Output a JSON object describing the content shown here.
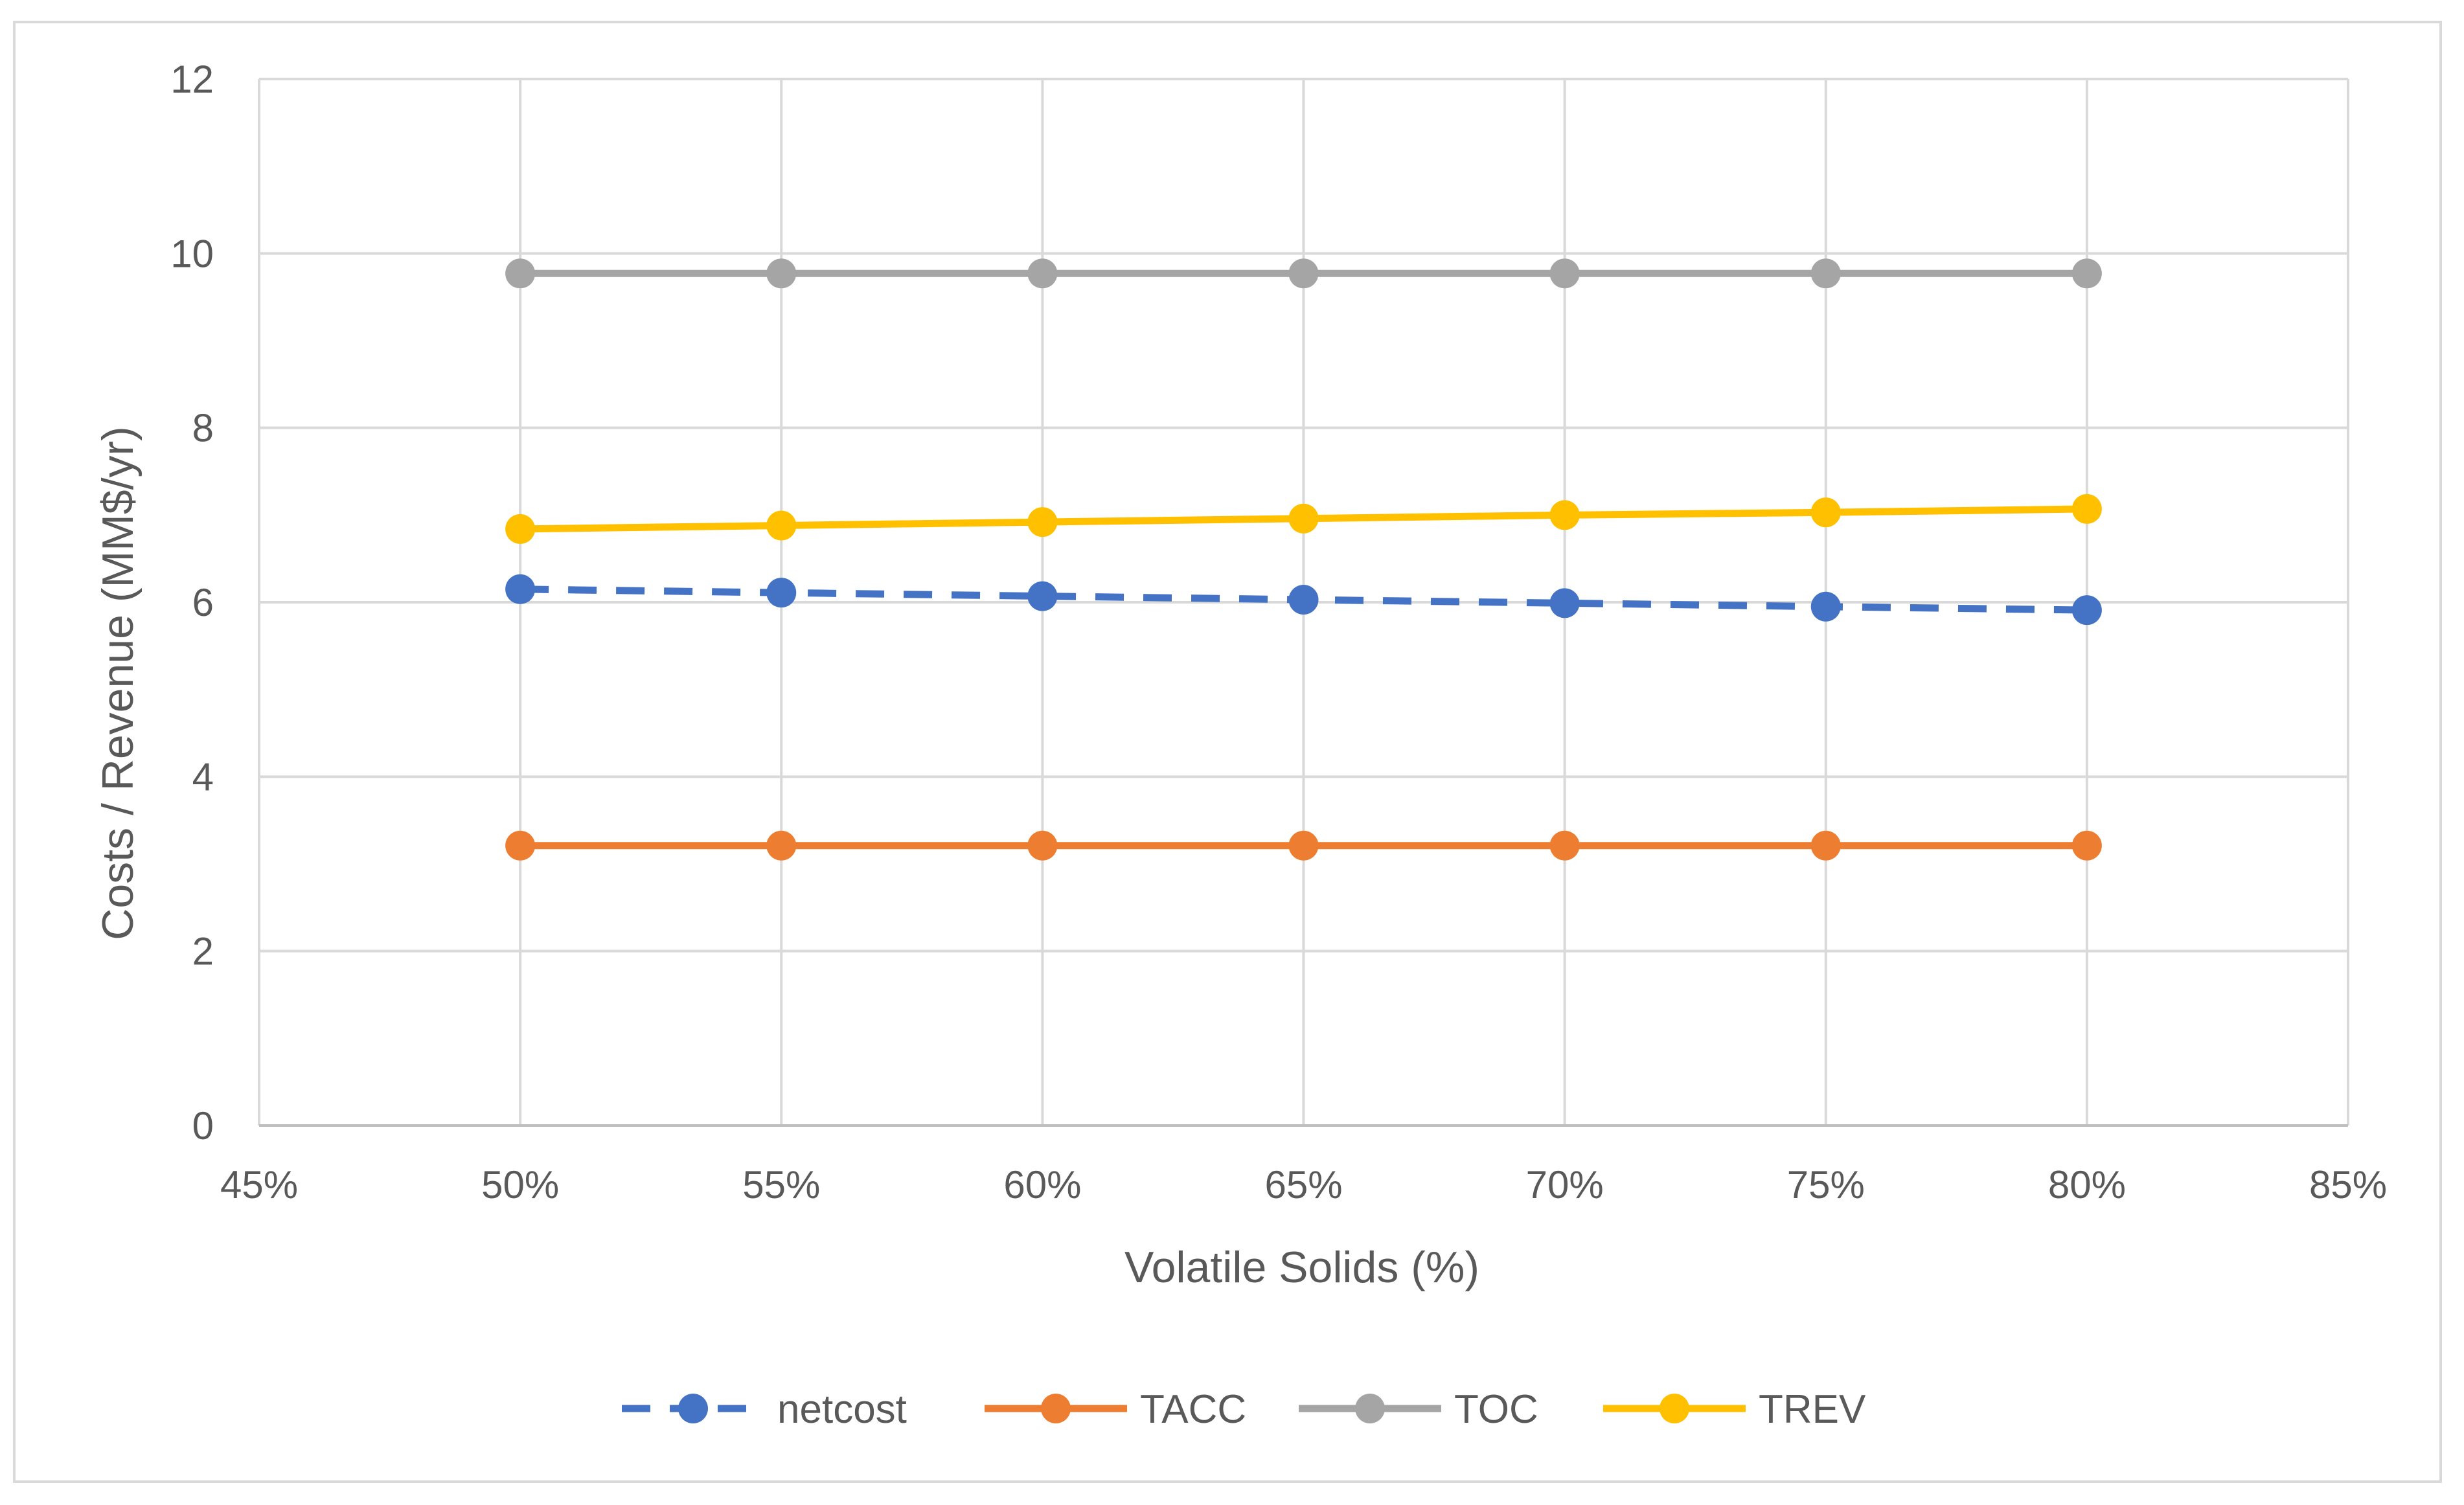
{
  "chart_data": {
    "type": "line",
    "title": "",
    "xlabel": "Volatile Solids (%)",
    "ylabel": "Costs / Revenue (MM$/yr)",
    "xlim": [
      0.45,
      0.85
    ],
    "ylim": [
      0,
      12
    ],
    "x_ticks": [
      0.45,
      0.5,
      0.55,
      0.6,
      0.65,
      0.7,
      0.75,
      0.8,
      0.85
    ],
    "x_tick_labels": [
      "45%",
      "50%",
      "55%",
      "60%",
      "65%",
      "70%",
      "75%",
      "80%",
      "85%"
    ],
    "y_ticks": [
      0,
      2,
      4,
      6,
      8,
      10,
      12
    ],
    "y_tick_labels": [
      "0",
      "2",
      "4",
      "6",
      "8",
      "10",
      "12"
    ],
    "grid": true,
    "legend_position": "bottom",
    "x": [
      0.5,
      0.55,
      0.6,
      0.65,
      0.7,
      0.75,
      0.8
    ],
    "series": [
      {
        "name": "netcost",
        "color": "#4472c4",
        "dashed": true,
        "values": [
          6.15,
          6.11,
          6.07,
          6.03,
          5.99,
          5.95,
          5.91
        ]
      },
      {
        "name": "TACC",
        "color": "#ed7d31",
        "dashed": false,
        "values": [
          3.21,
          3.21,
          3.21,
          3.21,
          3.21,
          3.21,
          3.21
        ]
      },
      {
        "name": "TOC",
        "color": "#a5a5a5",
        "dashed": false,
        "values": [
          9.77,
          9.77,
          9.77,
          9.77,
          9.77,
          9.77,
          9.77
        ]
      },
      {
        "name": "TREV",
        "color": "#ffc000",
        "dashed": false,
        "values": [
          6.84,
          6.88,
          6.92,
          6.96,
          7.0,
          7.03,
          7.07
        ]
      }
    ]
  }
}
